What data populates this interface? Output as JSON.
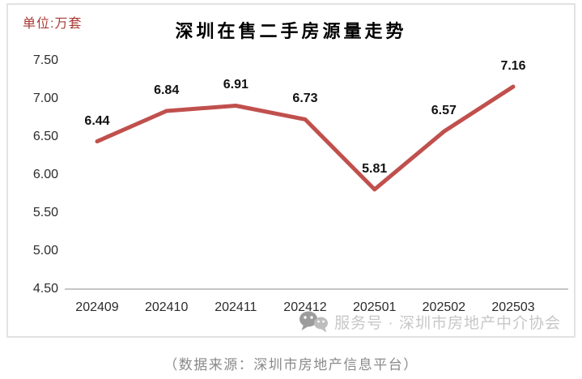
{
  "header": {
    "unit_label": "单位:万套"
  },
  "chart_data": {
    "type": "line",
    "title": "深圳在售二手房源量走势",
    "categories": [
      "202409",
      "202410",
      "202411",
      "202412",
      "202501",
      "202502",
      "202503"
    ],
    "values": [
      6.44,
      6.84,
      6.91,
      6.73,
      5.81,
      6.57,
      7.16
    ],
    "data_labels": [
      "6.44",
      "6.84",
      "6.91",
      "6.73",
      "5.81",
      "6.57",
      "7.16"
    ],
    "xlabel": "",
    "ylabel": "万套",
    "ylim": [
      4.5,
      7.5
    ],
    "ytick_step": 0.5,
    "yticks": [
      "7.50",
      "7.00",
      "6.50",
      "6.00",
      "5.50",
      "5.00",
      "4.50"
    ],
    "grid": false,
    "legend_position": "none"
  },
  "watermark": {
    "icon": "wechat-icon",
    "text": "服务号 · 深圳市房地产中介协会"
  },
  "footer": {
    "caption": "（数据来源：深圳市房地产信息平台）"
  },
  "colors": {
    "line": "#C0504D",
    "unit_label": "#A83A34",
    "frame_border": "#E2E2E2",
    "axis_line": "#C6C6C6",
    "tick_text": "#2B2B2B",
    "data_label_text": "#111111",
    "watermark_text": "#C7C7C7",
    "watermark_icon_dark": "#9C9C9C",
    "watermark_icon_light": "#BDBDBD",
    "caption_text": "#8A8A8A"
  }
}
